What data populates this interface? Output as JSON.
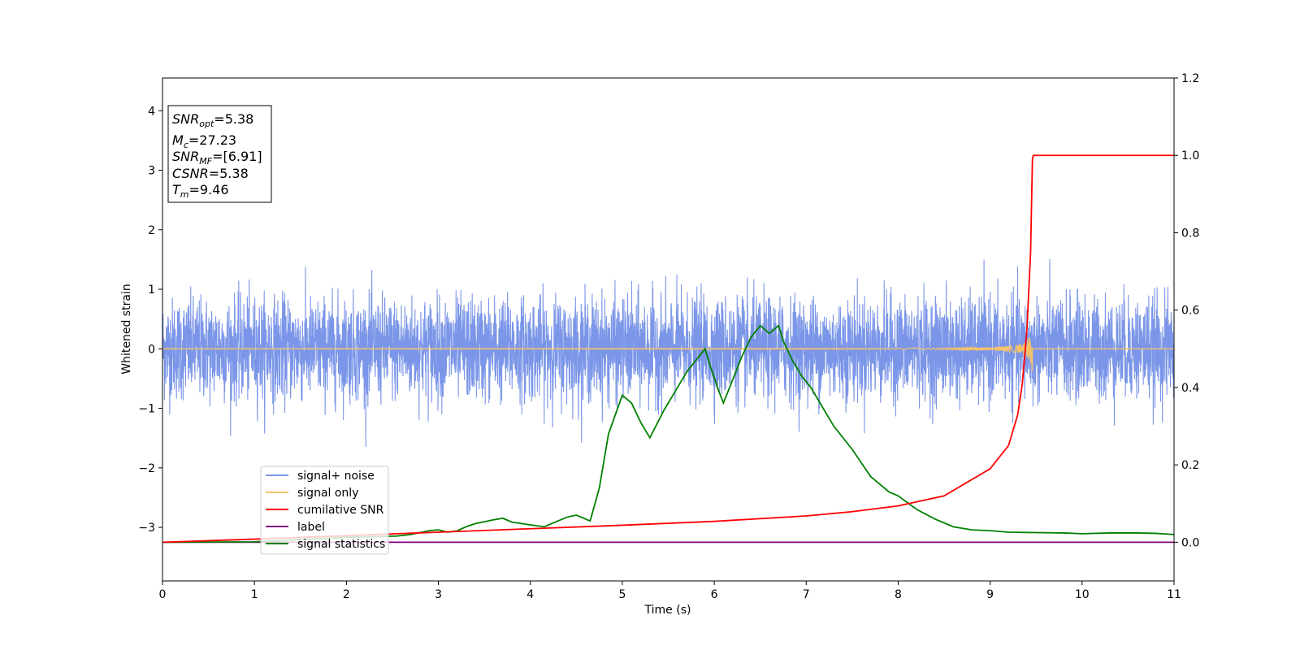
{
  "chart_data": {
    "type": "line",
    "xlabel": "Time (s)",
    "ylabel": "Whitened strain",
    "xlim": [
      0,
      11
    ],
    "ylim_left": [
      -3.9,
      4.55
    ],
    "ylim_right": [
      -0.1,
      1.2
    ],
    "x_ticks": [
      0,
      1,
      2,
      3,
      4,
      5,
      6,
      7,
      8,
      9,
      10,
      11
    ],
    "y_ticks_left": [
      -3,
      -2,
      -1,
      0,
      1,
      2,
      3,
      4
    ],
    "y_ticks_right": [
      "0.0",
      "0.2",
      "0.4",
      "0.6",
      "0.8",
      "1.0",
      "1.2"
    ],
    "grid": false,
    "legend_position": "lower-left",
    "annotation": {
      "lines": [
        {
          "var": "SNR",
          "sub": "opt",
          "text": "=5.38"
        },
        {
          "var": "M",
          "sub": "c",
          "text": "=27.23"
        },
        {
          "var": "SNR",
          "sub": "MF",
          "text": "=[6.91]"
        },
        {
          "var": "CSNR",
          "sub": "",
          "text": "=5.38"
        },
        {
          "var": "T",
          "sub": "m",
          "text": "=9.46"
        }
      ]
    },
    "series": [
      {
        "name": "signal+ noise",
        "axis": "left",
        "color": "#7b96e8",
        "kind": "noise",
        "typical_amplitude": 0.42,
        "max_amplitude": 1.65,
        "x_range": [
          0,
          11
        ]
      },
      {
        "name": "signal only",
        "axis": "left",
        "color": "#f5c26b",
        "kind": "chirp",
        "merger_time": 9.46,
        "peak_amplitude": 0.5,
        "x_range": [
          0,
          11
        ]
      },
      {
        "name": "cumilative SNR",
        "axis": "right",
        "color": "#ff0000",
        "x": [
          0,
          1,
          2,
          3,
          4,
          5,
          6,
          7,
          7.5,
          8,
          8.5,
          9,
          9.2,
          9.3,
          9.35,
          9.4,
          9.44,
          9.46,
          9.47,
          11
        ],
        "y": [
          0.0,
          0.008,
          0.017,
          0.026,
          0.035,
          0.044,
          0.054,
          0.068,
          0.079,
          0.094,
          0.12,
          0.19,
          0.25,
          0.33,
          0.41,
          0.55,
          0.75,
          0.99,
          1.0,
          1.0
        ]
      },
      {
        "name": "label",
        "axis": "right",
        "color": "#800080",
        "x": [
          0,
          11
        ],
        "y": [
          0,
          0
        ]
      },
      {
        "name": "signal statistics",
        "axis": "right",
        "color": "#008000",
        "x": [
          0,
          1,
          1.5,
          2,
          2.4,
          2.55,
          2.7,
          2.9,
          3.0,
          3.1,
          3.2,
          3.3,
          3.4,
          3.6,
          3.7,
          3.8,
          4.0,
          4.15,
          4.25,
          4.4,
          4.5,
          4.6,
          4.65,
          4.75,
          4.85,
          5.0,
          5.1,
          5.2,
          5.3,
          5.45,
          5.55,
          5.7,
          5.8,
          5.9,
          5.95,
          6.05,
          6.1,
          6.2,
          6.3,
          6.4,
          6.5,
          6.6,
          6.65,
          6.7,
          6.75,
          6.85,
          6.95,
          7.05,
          7.15,
          7.3,
          7.5,
          7.7,
          7.9,
          8.0,
          8.2,
          8.4,
          8.6,
          8.8,
          9.0,
          9.2,
          9.5,
          9.8,
          10.0,
          10.3,
          10.6,
          10.8,
          11.0
        ],
        "y": [
          0.0,
          0.001,
          0.007,
          0.013,
          0.015,
          0.016,
          0.02,
          0.03,
          0.032,
          0.026,
          0.029,
          0.04,
          0.048,
          0.058,
          0.062,
          0.052,
          0.045,
          0.04,
          0.05,
          0.065,
          0.07,
          0.06,
          0.055,
          0.14,
          0.28,
          0.38,
          0.36,
          0.31,
          0.27,
          0.34,
          0.38,
          0.44,
          0.47,
          0.5,
          0.46,
          0.39,
          0.36,
          0.42,
          0.48,
          0.53,
          0.56,
          0.54,
          0.55,
          0.56,
          0.52,
          0.47,
          0.43,
          0.4,
          0.36,
          0.3,
          0.24,
          0.17,
          0.13,
          0.12,
          0.085,
          0.06,
          0.04,
          0.032,
          0.03,
          0.026,
          0.025,
          0.024,
          0.022,
          0.024,
          0.024,
          0.023,
          0.02
        ]
      }
    ]
  }
}
